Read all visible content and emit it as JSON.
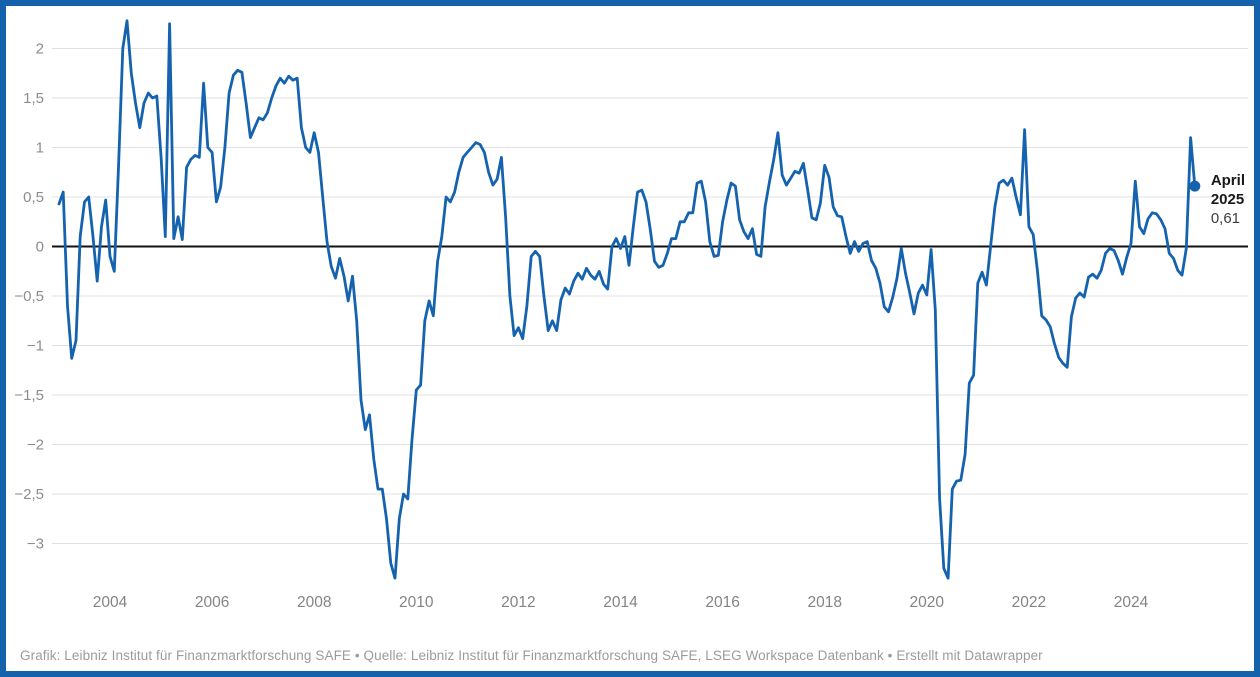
{
  "chart_data": {
    "type": "line",
    "title": "",
    "xlabel": "",
    "ylabel": "",
    "frequency": "monthly",
    "x_start": "2003-01",
    "x_end": "2025-04",
    "values": [
      0.43,
      0.55,
      -0.6,
      -1.13,
      -0.95,
      0.1,
      0.45,
      0.5,
      0.1,
      -0.35,
      0.2,
      0.47,
      -0.1,
      -0.25,
      0.8,
      2.0,
      2.28,
      1.75,
      1.45,
      1.2,
      1.45,
      1.55,
      1.5,
      1.52,
      0.9,
      0.1,
      2.25,
      0.08,
      0.3,
      0.07,
      0.8,
      0.88,
      0.92,
      0.9,
      1.65,
      1.0,
      0.95,
      0.45,
      0.6,
      1.0,
      1.55,
      1.73,
      1.78,
      1.76,
      1.45,
      1.1,
      1.2,
      1.3,
      1.28,
      1.35,
      1.5,
      1.62,
      1.7,
      1.65,
      1.72,
      1.68,
      1.7,
      1.2,
      1.0,
      0.95,
      1.15,
      0.95,
      0.5,
      0.05,
      -0.2,
      -0.32,
      -0.12,
      -0.3,
      -0.55,
      -0.3,
      -0.75,
      -1.55,
      -1.85,
      -1.7,
      -2.15,
      -2.45,
      -2.45,
      -2.75,
      -3.2,
      -3.35,
      -2.75,
      -2.5,
      -2.55,
      -1.95,
      -1.45,
      -1.4,
      -0.75,
      -0.55,
      -0.7,
      -0.15,
      0.1,
      0.5,
      0.45,
      0.55,
      0.75,
      0.9,
      0.95,
      1.0,
      1.05,
      1.03,
      0.95,
      0.75,
      0.62,
      0.68,
      0.9,
      0.3,
      -0.5,
      -0.9,
      -0.82,
      -0.93,
      -0.6,
      -0.1,
      -0.05,
      -0.1,
      -0.5,
      -0.85,
      -0.75,
      -0.85,
      -0.54,
      -0.42,
      -0.48,
      -0.35,
      -0.27,
      -0.33,
      -0.22,
      -0.29,
      -0.33,
      -0.25,
      -0.38,
      -0.43,
      0.0,
      0.08,
      -0.02,
      0.1,
      -0.19,
      0.2,
      0.55,
      0.57,
      0.45,
      0.17,
      -0.15,
      -0.21,
      -0.19,
      -0.07,
      0.08,
      0.08,
      0.25,
      0.25,
      0.34,
      0.34,
      0.64,
      0.66,
      0.45,
      0.05,
      -0.1,
      -0.09,
      0.25,
      0.47,
      0.64,
      0.61,
      0.27,
      0.15,
      0.08,
      0.18,
      -0.08,
      -0.1,
      0.4,
      0.65,
      0.87,
      1.15,
      0.72,
      0.62,
      0.69,
      0.76,
      0.74,
      0.84,
      0.57,
      0.29,
      0.27,
      0.44,
      0.82,
      0.7,
      0.4,
      0.31,
      0.3,
      0.1,
      -0.07,
      0.05,
      -0.05,
      0.03,
      0.05,
      -0.14,
      -0.22,
      -0.37,
      -0.61,
      -0.66,
      -0.51,
      -0.32,
      -0.02,
      -0.27,
      -0.47,
      -0.68,
      -0.47,
      -0.39,
      -0.49,
      -0.03,
      -0.64,
      -2.55,
      -3.25,
      -3.35,
      -2.45,
      -2.37,
      -2.36,
      -2.1,
      -1.38,
      -1.3,
      -0.37,
      -0.26,
      -0.39,
      0.0,
      0.4,
      0.64,
      0.67,
      0.62,
      0.69,
      0.5,
      0.32,
      1.18,
      0.2,
      0.12,
      -0.24,
      -0.7,
      -0.74,
      -0.81,
      -0.98,
      -1.12,
      -1.18,
      -1.22,
      -0.71,
      -0.52,
      -0.47,
      -0.51,
      -0.31,
      -0.28,
      -0.32,
      -0.24,
      -0.07,
      -0.02,
      -0.04,
      -0.14,
      -0.28,
      -0.11,
      0.03,
      0.66,
      0.2,
      0.13,
      0.28,
      0.34,
      0.33,
      0.27,
      0.18,
      -0.07,
      -0.12,
      -0.24,
      -0.29,
      -0.02,
      1.1,
      0.61
    ],
    "ylim": [
      -3.6,
      2.4
    ],
    "grid": "horizontal",
    "legend_position": "none",
    "y_ticks": [
      {
        "value": 2,
        "label": "2"
      },
      {
        "value": 1.5,
        "label": "1,5"
      },
      {
        "value": 1,
        "label": "1"
      },
      {
        "value": 0.5,
        "label": "0,5"
      },
      {
        "value": 0,
        "label": "0"
      },
      {
        "value": -0.5,
        "label": "−0,5"
      },
      {
        "value": -1,
        "label": "−1"
      },
      {
        "value": -1.5,
        "label": "−1,5"
      },
      {
        "value": -2,
        "label": "−2"
      },
      {
        "value": -2.5,
        "label": "−2,5"
      },
      {
        "value": -3,
        "label": "−3"
      }
    ],
    "x_ticks": [
      "2004",
      "2006",
      "2008",
      "2010",
      "2012",
      "2014",
      "2016",
      "2018",
      "2020",
      "2022",
      "2024"
    ],
    "last_point": {
      "date": "2025-04",
      "value": 0.61,
      "label_lines": [
        "April",
        "2025"
      ],
      "value_label": "0,61"
    }
  },
  "colors": {
    "line": "#1563ae",
    "frame": "#1562ac",
    "marker": "#1563ae",
    "grid": "#e1e1e1",
    "zero_line": "#111111",
    "y_tick_text": "#8d8d8d",
    "x_tick_text": "#848484",
    "annotation_bold_text": "#1a1a1a",
    "annotation_value_text": "#3c3c3c",
    "footer_text": "#9b9b9b"
  },
  "footer": {
    "text": "Grafik: Leibniz Institut für Finanzmarktforschung SAFE • Quelle: Leibniz Institut für Finanzmarktforschung SAFE, LSEG Workspace Datenbank • Erstellt mit Datawrapper"
  }
}
